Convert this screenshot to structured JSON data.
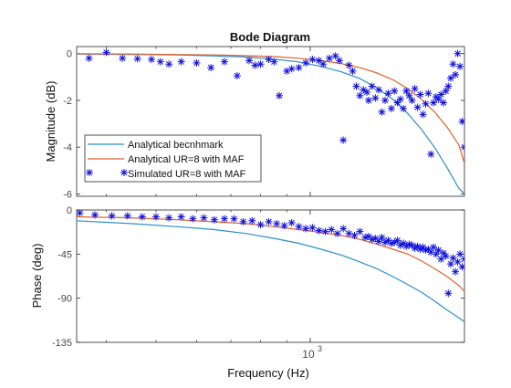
{
  "figure": {
    "title": "Bode Diagram",
    "xlabel": "Frequency  (Hz)"
  },
  "colors": {
    "benchmark": "#2b8fcb",
    "analytical_ur8": "#e0622a",
    "simulated": "#1010dd",
    "axis": "#262626",
    "tick_text": "#4a4a4a"
  },
  "chart_data": [
    {
      "type": "line",
      "panel": "magnitude",
      "title": "Bode Diagram",
      "ylabel": "Magnitude (dB)",
      "xlabel": "",
      "xscale": "log",
      "xlim": [
        350,
        2000
      ],
      "ylim": [
        -6.1,
        0.3
      ],
      "yticks": [
        0,
        -2,
        -4,
        -6
      ],
      "ytick_labels": [
        "0",
        "-2",
        "-4",
        "-6"
      ],
      "legend": {
        "placement": "middle-left",
        "entries": [
          "Analytical becnhmark",
          "Analytical UR=8 with MAF",
          "Simulated UR=8 with MAF"
        ]
      },
      "series": [
        {
          "name": "Analytical becnhmark",
          "style": "line",
          "x": [
            350,
            450,
            550,
            650,
            750,
            850,
            950,
            1050,
            1150,
            1250,
            1350,
            1450,
            1550,
            1650,
            1750,
            1850,
            1950,
            2000
          ],
          "y": [
            -0.02,
            -0.04,
            -0.06,
            -0.1,
            -0.15,
            -0.24,
            -0.36,
            -0.55,
            -0.78,
            -1.07,
            -1.47,
            -1.96,
            -2.56,
            -3.25,
            -4.02,
            -4.88,
            -5.76,
            -6.0
          ]
        },
        {
          "name": "Analytical UR=8 with MAF",
          "style": "line",
          "x": [
            350,
            450,
            550,
            650,
            750,
            850,
            950,
            1050,
            1150,
            1250,
            1350,
            1450,
            1550,
            1650,
            1750,
            1850,
            1950,
            2000
          ],
          "y": [
            -0.01,
            -0.02,
            -0.04,
            -0.06,
            -0.09,
            -0.13,
            -0.2,
            -0.3,
            -0.43,
            -0.6,
            -0.83,
            -1.12,
            -1.5,
            -1.96,
            -2.5,
            -3.15,
            -3.9,
            -4.7
          ]
        },
        {
          "name": "Simulated UR=8 with MAF",
          "style": "marker",
          "x": [
            370,
            400,
            430,
            460,
            490,
            510,
            530,
            560,
            600,
            640,
            680,
            720,
            760,
            780,
            800,
            830,
            850,
            870,
            900,
            920,
            950,
            980,
            1010,
            1040,
            1060,
            1090,
            1120,
            1140,
            1160,
            1190,
            1210,
            1230,
            1250,
            1270,
            1290,
            1300,
            1320,
            1340,
            1360,
            1380,
            1400,
            1420,
            1440,
            1460,
            1480,
            1500,
            1520,
            1540,
            1560,
            1580,
            1600,
            1620,
            1640,
            1660,
            1680,
            1700,
            1720,
            1740,
            1760,
            1780,
            1800,
            1820,
            1840,
            1860,
            1880,
            1900,
            1920,
            1940,
            1960,
            1980,
            2000
          ],
          "y": [
            -0.2,
            0.05,
            -0.2,
            -0.22,
            -0.25,
            -0.35,
            -0.45,
            -0.35,
            -0.4,
            -0.6,
            -0.35,
            -0.95,
            -0.3,
            -0.5,
            -0.45,
            -0.25,
            -0.35,
            -1.8,
            -0.75,
            -0.65,
            -0.6,
            -0.4,
            -0.25,
            -0.3,
            -0.45,
            -0.2,
            -0.1,
            -0.3,
            -3.7,
            -0.5,
            -0.75,
            -1.4,
            -1.8,
            -1.55,
            -1.65,
            -2.0,
            -1.4,
            -1.9,
            -1.55,
            -2.5,
            -2.0,
            -1.7,
            -2.35,
            -1.6,
            -2.1,
            -1.95,
            -2.35,
            -1.6,
            -1.8,
            -2.0,
            -1.5,
            -2.3,
            -1.75,
            -2.6,
            -2.15,
            -1.7,
            -4.3,
            -2.1,
            -1.85,
            -1.95,
            -1.75,
            -2.1,
            -1.6,
            -1.4,
            -1.05,
            -0.45,
            -0.9,
            0.0,
            -0.55,
            -2.9,
            -4.0
          ]
        }
      ]
    },
    {
      "type": "line",
      "panel": "phase",
      "ylabel": "Phase (deg)",
      "xlabel": "Frequency  (Hz)",
      "xscale": "log",
      "xlim": [
        350,
        2000
      ],
      "xticks": [
        1000
      ],
      "xtick_labels": [
        "10",
        "3"
      ],
      "ylim": [
        -135,
        0
      ],
      "yticks": [
        0,
        -45,
        -90,
        -135
      ],
      "ytick_labels": [
        "0",
        "-45",
        "-90",
        "-135"
      ],
      "series": [
        {
          "name": "Analytical becnhmark",
          "style": "line",
          "x": [
            350,
            450,
            550,
            650,
            750,
            850,
            950,
            1050,
            1150,
            1250,
            1350,
            1450,
            1550,
            1650,
            1750,
            1850,
            1950,
            2000
          ],
          "y": [
            -11,
            -14,
            -17,
            -20,
            -24,
            -29,
            -34,
            -40,
            -46,
            -53,
            -60,
            -68,
            -76,
            -84,
            -93,
            -102,
            -110,
            -114
          ]
        },
        {
          "name": "Analytical UR=8 with MAF",
          "style": "line",
          "x": [
            350,
            450,
            550,
            650,
            750,
            850,
            950,
            1050,
            1150,
            1250,
            1350,
            1450,
            1550,
            1650,
            1750,
            1850,
            1950,
            2000
          ],
          "y": [
            -7,
            -8,
            -10,
            -12,
            -14,
            -17,
            -20,
            -23,
            -26,
            -30,
            -35,
            -40,
            -45,
            -52,
            -60,
            -68,
            -77,
            -83
          ]
        },
        {
          "name": "Simulated UR=8 with MAF",
          "style": "marker",
          "x": [
            355,
            380,
            410,
            440,
            470,
            500,
            530,
            560,
            590,
            620,
            650,
            680,
            710,
            740,
            770,
            800,
            830,
            860,
            890,
            920,
            950,
            980,
            1010,
            1040,
            1070,
            1100,
            1130,
            1160,
            1190,
            1220,
            1250,
            1280,
            1300,
            1320,
            1340,
            1360,
            1380,
            1400,
            1420,
            1440,
            1460,
            1480,
            1500,
            1520,
            1540,
            1560,
            1580,
            1600,
            1620,
            1640,
            1660,
            1680,
            1700,
            1720,
            1740,
            1760,
            1780,
            1800,
            1820,
            1840,
            1860,
            1880,
            1900,
            1920,
            1940,
            1960,
            1980,
            2000
          ],
          "y": [
            -3,
            -5,
            -6,
            -6,
            -7,
            -7,
            -8,
            -7,
            -9,
            -8,
            -10,
            -9,
            -9,
            -12,
            -11,
            -15,
            -12,
            -14,
            -16,
            -13,
            -17,
            -19,
            -18,
            -21,
            -22,
            -20,
            -24,
            -19,
            -24,
            -26,
            -22,
            -28,
            -27,
            -30,
            -29,
            -32,
            -28,
            -33,
            -31,
            -34,
            -33,
            -31,
            -36,
            -34,
            -37,
            -35,
            -36,
            -39,
            -37,
            -40,
            -38,
            -41,
            -40,
            -43,
            -38,
            -45,
            -41,
            -50,
            -44,
            -47,
            -85,
            -55,
            -49,
            -63,
            -53,
            -45,
            -58,
            -50
          ]
        }
      ]
    }
  ]
}
